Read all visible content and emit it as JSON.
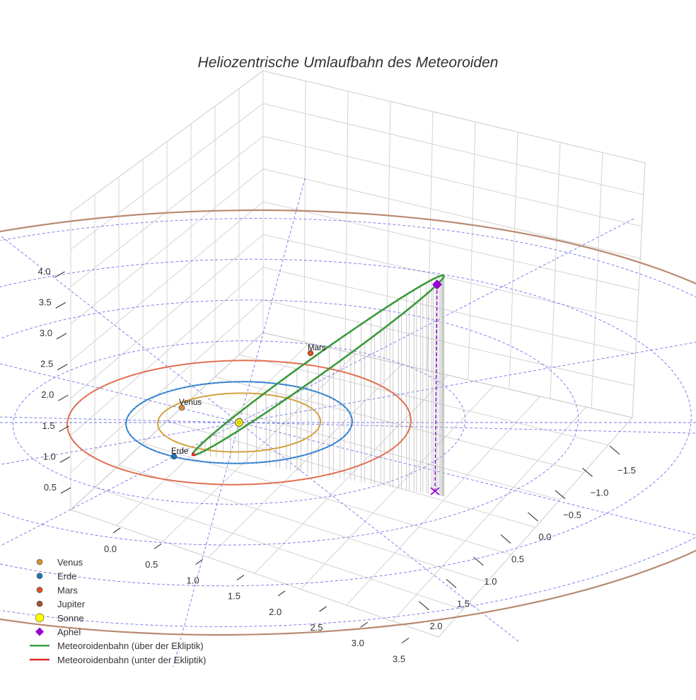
{
  "chart_data": {
    "type": "line",
    "projection": "3d",
    "title": "Heliozentrische Umlaufbahn des Meteoroiden",
    "axes": {
      "x_ticks": [
        "0.0",
        "0.5",
        "1.0",
        "1.5",
        "2.0",
        "2.5",
        "3.0",
        "3.5"
      ],
      "y_ticks": [
        "−1.5",
        "−1.0",
        "−0.5",
        "0.0",
        "0.5",
        "1.0",
        "1.5",
        "2.0"
      ],
      "z_ticks": [
        "0.5",
        "1.0",
        "1.5",
        "2.0",
        "2.5",
        "3.0",
        "3.5",
        "4.0"
      ],
      "grid": true
    },
    "planets": [
      {
        "name": "Venus",
        "label": "Venus",
        "orbit_radius_au": 0.72,
        "color": "#d4903a",
        "orbit_color": "#d4a040"
      },
      {
        "name": "Erde",
        "label": "Erde",
        "orbit_radius_au": 1.0,
        "color": "#1f77b4",
        "orbit_color": "#2a78c8"
      },
      {
        "name": "Mars",
        "label": "Mars",
        "orbit_radius_au": 1.52,
        "color": "#e0501e",
        "orbit_color": "#e07050"
      },
      {
        "name": "Jupiter",
        "label": "",
        "orbit_radius_au": 5.2,
        "color": "#a0522d",
        "orbit_color": "#b88a70"
      }
    ],
    "sun": {
      "name": "Sonne",
      "color": "#ffff00"
    },
    "aphel": {
      "name": "Aphel",
      "color": "#9400d3"
    },
    "series": [
      {
        "name": "Meteoroidenbahn (über der Ekliptik)",
        "color": "#3a9a3a"
      },
      {
        "name": "Meteoroidenbahn (unter der Ekliptik)",
        "color": "#e02020"
      }
    ],
    "legend_position": "bottom-left"
  }
}
